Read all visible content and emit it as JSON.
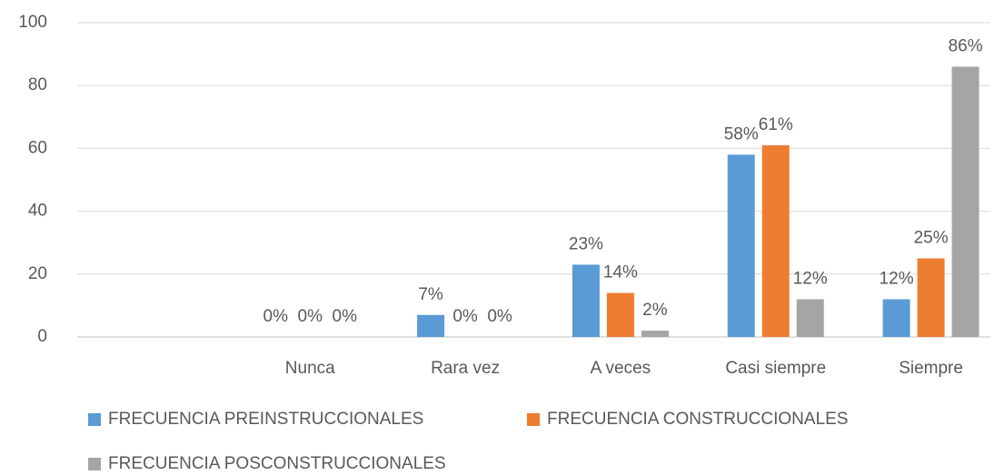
{
  "chart_data": {
    "type": "bar",
    "categories": [
      null,
      "Nunca",
      "Rara vez",
      "A veces",
      "Casi siempre",
      "Siempre"
    ],
    "series": [
      {
        "name": "FRECUENCIA PREINSTRUCCIONALES",
        "color": "#5b9bd5",
        "values": [
          null,
          0,
          7,
          23,
          58,
          12
        ],
        "value_labels": [
          null,
          "0%",
          "7%",
          "23%",
          "58%",
          "12%"
        ]
      },
      {
        "name": "FRECUENCIA CONSTRUCCIONALES",
        "color": "#ed7d31",
        "values": [
          null,
          0,
          0,
          14,
          61,
          25
        ],
        "value_labels": [
          null,
          "0%",
          "0%",
          "14%",
          "61%",
          "25%"
        ]
      },
      {
        "name": "FRECUENCIA POSCONSTRUCCIONALES",
        "color": "#a5a5a5",
        "values": [
          null,
          0,
          0,
          2,
          12,
          86
        ],
        "value_labels": [
          null,
          "0%",
          "0%",
          "2%",
          "12%",
          "86%"
        ]
      }
    ],
    "ylim": [
      0,
      100
    ],
    "yticks": [
      0,
      20,
      40,
      60,
      80,
      100
    ],
    "grid": true,
    "legend": "bottom"
  }
}
